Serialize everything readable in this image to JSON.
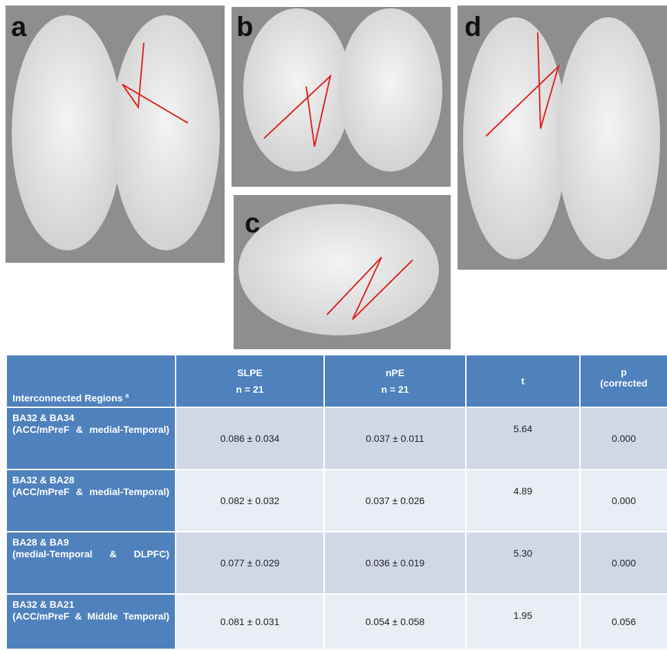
{
  "panels": {
    "labels": [
      "a",
      "b",
      "c",
      "d"
    ]
  },
  "table": {
    "header": {
      "region": "Interconnected Regions",
      "footnote": "a",
      "slpe": "SLPE",
      "slpe_n": "n = 21",
      "npe": "nPE",
      "npe_n": "n = 21",
      "t": "t",
      "p": "p",
      "p_note": "(corrected"
    },
    "rows": [
      {
        "pair": "BA32 & BA34",
        "desc": "(ACC/mPreF & medial-Temporal)",
        "slpe": "0.086 ± 0.034",
        "npe": "0.037 ± 0.011",
        "t": "5.64",
        "p": "0.000"
      },
      {
        "pair": "BA32 & BA28",
        "desc": "(ACC/mPreF & medial-Temporal)",
        "slpe": "0.082 ± 0.032",
        "npe": "0.037 ± 0.026",
        "t": "4.89",
        "p": "0.000"
      },
      {
        "pair": "BA28 & BA9",
        "desc": "(medial-Temporal & DLPFC)",
        "slpe": "0.077 ± 0.029",
        "npe": "0.036 ± 0.019",
        "t": "5.30",
        "p": "0.000"
      },
      {
        "pair": "BA32 & BA21",
        "desc": "(ACC/mPreF & Middle Temporal)",
        "slpe": "0.081 ± 0.031",
        "npe": "0.054 ± 0.058",
        "t": "1.95",
        "p": "0.056"
      }
    ]
  }
}
